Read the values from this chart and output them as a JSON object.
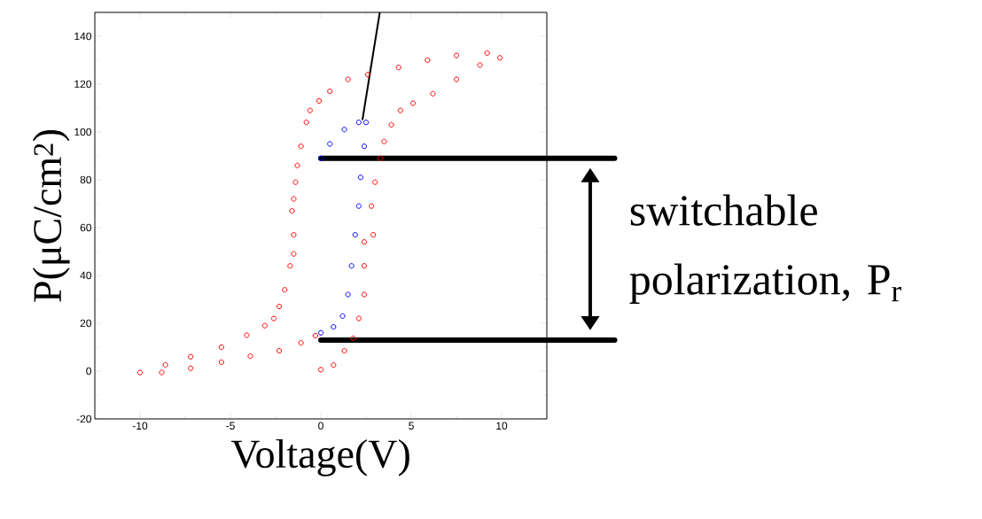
{
  "chart_data": {
    "type": "scatter",
    "xlabel": "Voltage(V)",
    "ylabel": "P(μC/cm$^{2}$)",
    "xlim": [
      -12.5,
      12.5
    ],
    "ylim": [
      -20,
      150
    ],
    "xticks": [
      -10,
      -5,
      0,
      5,
      10
    ],
    "yticks": [
      -20,
      0,
      20,
      40,
      60,
      80,
      100,
      120,
      140
    ],
    "marker": "circle",
    "grid": false,
    "series": [
      {
        "color": "#ff0000",
        "x": [
          0,
          0.7,
          1.3,
          1.8,
          2.1,
          2.4,
          2.4,
          2.4,
          2.9,
          2.8,
          3.0,
          3.3,
          3.5,
          3.9,
          4.4,
          5.1,
          6.2,
          7.5,
          8.8,
          9.9,
          9.2,
          7.5,
          5.9,
          4.3,
          2.6,
          1.5,
          0.5,
          -0.1,
          -0.6,
          -0.8,
          -1.1,
          -1.3,
          -1.4,
          -1.5,
          -1.6,
          -1.5,
          -1.5,
          -1.7,
          -2.0,
          -2.3,
          -2.6,
          -3.1,
          -4.1,
          -5.5,
          -7.2,
          -8.6,
          -10,
          -8.8,
          -7.2,
          -5.5,
          -3.9,
          -2.3,
          -1.1,
          -0.3
        ],
        "values": [
          0.6,
          2.5,
          8.5,
          13.7,
          22,
          32,
          44,
          54,
          57,
          69,
          79,
          89,
          96,
          103,
          109,
          112,
          116,
          122,
          128,
          131,
          133,
          132,
          130,
          127,
          124,
          122,
          117,
          113,
          109,
          104,
          94,
          86,
          79,
          72,
          67,
          57,
          49,
          44,
          34,
          27,
          22,
          19,
          15,
          10,
          6,
          2.6,
          -0.6,
          -0.6,
          1.2,
          3.7,
          6.2,
          8.5,
          11.8,
          14.8
        ]
      },
      {
        "color": "#0000ff",
        "x": [
          0,
          0.7,
          1.2,
          1.5,
          1.7,
          1.9,
          2.1,
          2.2,
          2.4,
          2.5,
          2.1,
          1.3,
          0.5,
          0
        ],
        "values": [
          16,
          18.5,
          23,
          32,
          44,
          57,
          69,
          81,
          94,
          104,
          104,
          101,
          95,
          89
        ]
      },
      {
        "type": "line",
        "marker": "none",
        "color": "#000000",
        "x": [
          2.3,
          3.26
        ],
        "values": [
          105,
          150
        ]
      }
    ],
    "ref_lines": [
      {
        "axis": "y",
        "value": 89,
        "color": "#000000"
      },
      {
        "axis": "y",
        "value": 13,
        "color": "#000000"
      }
    ],
    "annotations": [
      "switchable polarization, P$_{r}$"
    ]
  }
}
